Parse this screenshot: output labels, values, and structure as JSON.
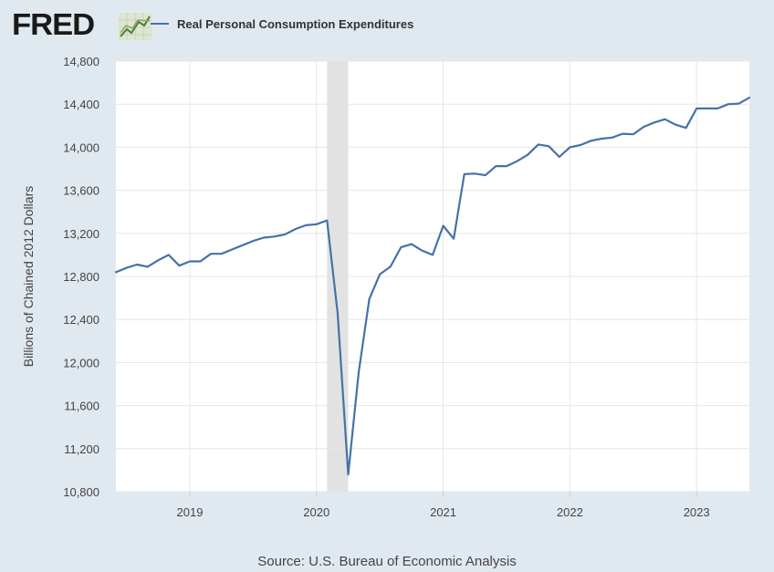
{
  "header": {
    "logo_text": "FRED",
    "logo_icon": "chart-line-icon"
  },
  "legend": {
    "label": "Real Personal Consumption Expenditures"
  },
  "source": "Source: U.S. Bureau of Economic Analysis",
  "colors": {
    "background": "#e1e9f0",
    "plot_background": "#ffffff",
    "series": "#4572a7",
    "recession": "#e2e2e2",
    "grid": "#e6e6e6"
  },
  "chart_data": {
    "type": "line",
    "title": "",
    "xlabel": "",
    "ylabel": "Billions of Chained 2012 Dollars",
    "ylim": [
      10800,
      14800
    ],
    "xlim": [
      "2018-06",
      "2023-06"
    ],
    "yticks": [
      10800,
      11200,
      11600,
      12000,
      12400,
      12800,
      13200,
      13600,
      14000,
      14400,
      14800
    ],
    "ytick_labels": [
      "10,800",
      "11,200",
      "11,600",
      "12,000",
      "12,400",
      "12,800",
      "13,200",
      "13,600",
      "14,000",
      "14,400",
      "14,800"
    ],
    "xticks": [
      "2019-01",
      "2020-01",
      "2021-01",
      "2022-01",
      "2023-01"
    ],
    "xtick_labels": [
      "2019",
      "2020",
      "2021",
      "2022",
      "2023"
    ],
    "grid": true,
    "legend_position": "top",
    "recession_shading": {
      "start": "2020-02",
      "end": "2020-04"
    },
    "series": [
      {
        "name": "Real Personal Consumption Expenditures",
        "x": [
          "2018-06",
          "2018-07",
          "2018-08",
          "2018-09",
          "2018-10",
          "2018-11",
          "2018-12",
          "2019-01",
          "2019-02",
          "2019-03",
          "2019-04",
          "2019-05",
          "2019-06",
          "2019-07",
          "2019-08",
          "2019-09",
          "2019-10",
          "2019-11",
          "2019-12",
          "2020-01",
          "2020-02",
          "2020-03",
          "2020-04",
          "2020-05",
          "2020-06",
          "2020-07",
          "2020-08",
          "2020-09",
          "2020-10",
          "2020-11",
          "2020-12",
          "2021-01",
          "2021-02",
          "2021-03",
          "2021-04",
          "2021-05",
          "2021-06",
          "2021-07",
          "2021-08",
          "2021-09",
          "2021-10",
          "2021-11",
          "2021-12",
          "2022-01",
          "2022-02",
          "2022-03",
          "2022-04",
          "2022-05",
          "2022-06",
          "2022-07",
          "2022-08",
          "2022-09",
          "2022-10",
          "2022-11",
          "2022-12",
          "2023-01",
          "2023-02",
          "2023-03",
          "2023-04",
          "2023-05",
          "2023-06"
        ],
        "values": [
          12840,
          12880,
          12910,
          12890,
          12950,
          13000,
          12900,
          12940,
          12940,
          13010,
          13010,
          13050,
          13090,
          13130,
          13160,
          13170,
          13190,
          13240,
          13275,
          13285,
          13320,
          12460,
          10960,
          11910,
          12590,
          12820,
          12890,
          13070,
          13100,
          13040,
          13000,
          13270,
          13150,
          13750,
          13755,
          13740,
          13825,
          13825,
          13870,
          13930,
          14025,
          14010,
          13910,
          14000,
          14020,
          14060,
          14080,
          14090,
          14125,
          14120,
          14190,
          14230,
          14260,
          14210,
          14180,
          14360,
          14360,
          14360,
          14400,
          14405,
          14460
        ]
      }
    ]
  }
}
